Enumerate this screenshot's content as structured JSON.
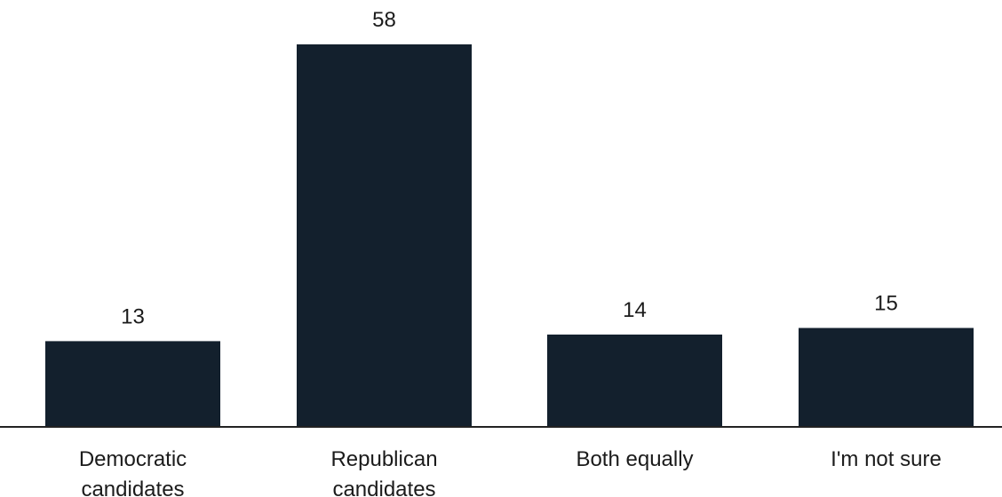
{
  "chart_data": {
    "type": "bar",
    "categories": [
      [
        "Democratic",
        "candidates"
      ],
      [
        "Republican",
        "candidates"
      ],
      [
        "Both equally"
      ],
      [
        "I'm not sure"
      ]
    ],
    "values": [
      13,
      58,
      14,
      15
    ],
    "data_labels": [
      "13",
      "58",
      "14",
      "15"
    ],
    "title": "",
    "xlabel": "",
    "ylabel": "",
    "ylim": [
      0,
      58
    ],
    "grid": false,
    "legend": "none"
  },
  "colors": {
    "bar": "#13202d",
    "axis": "#222222",
    "text": "#1b1b1b",
    "background": "#ffffff"
  }
}
